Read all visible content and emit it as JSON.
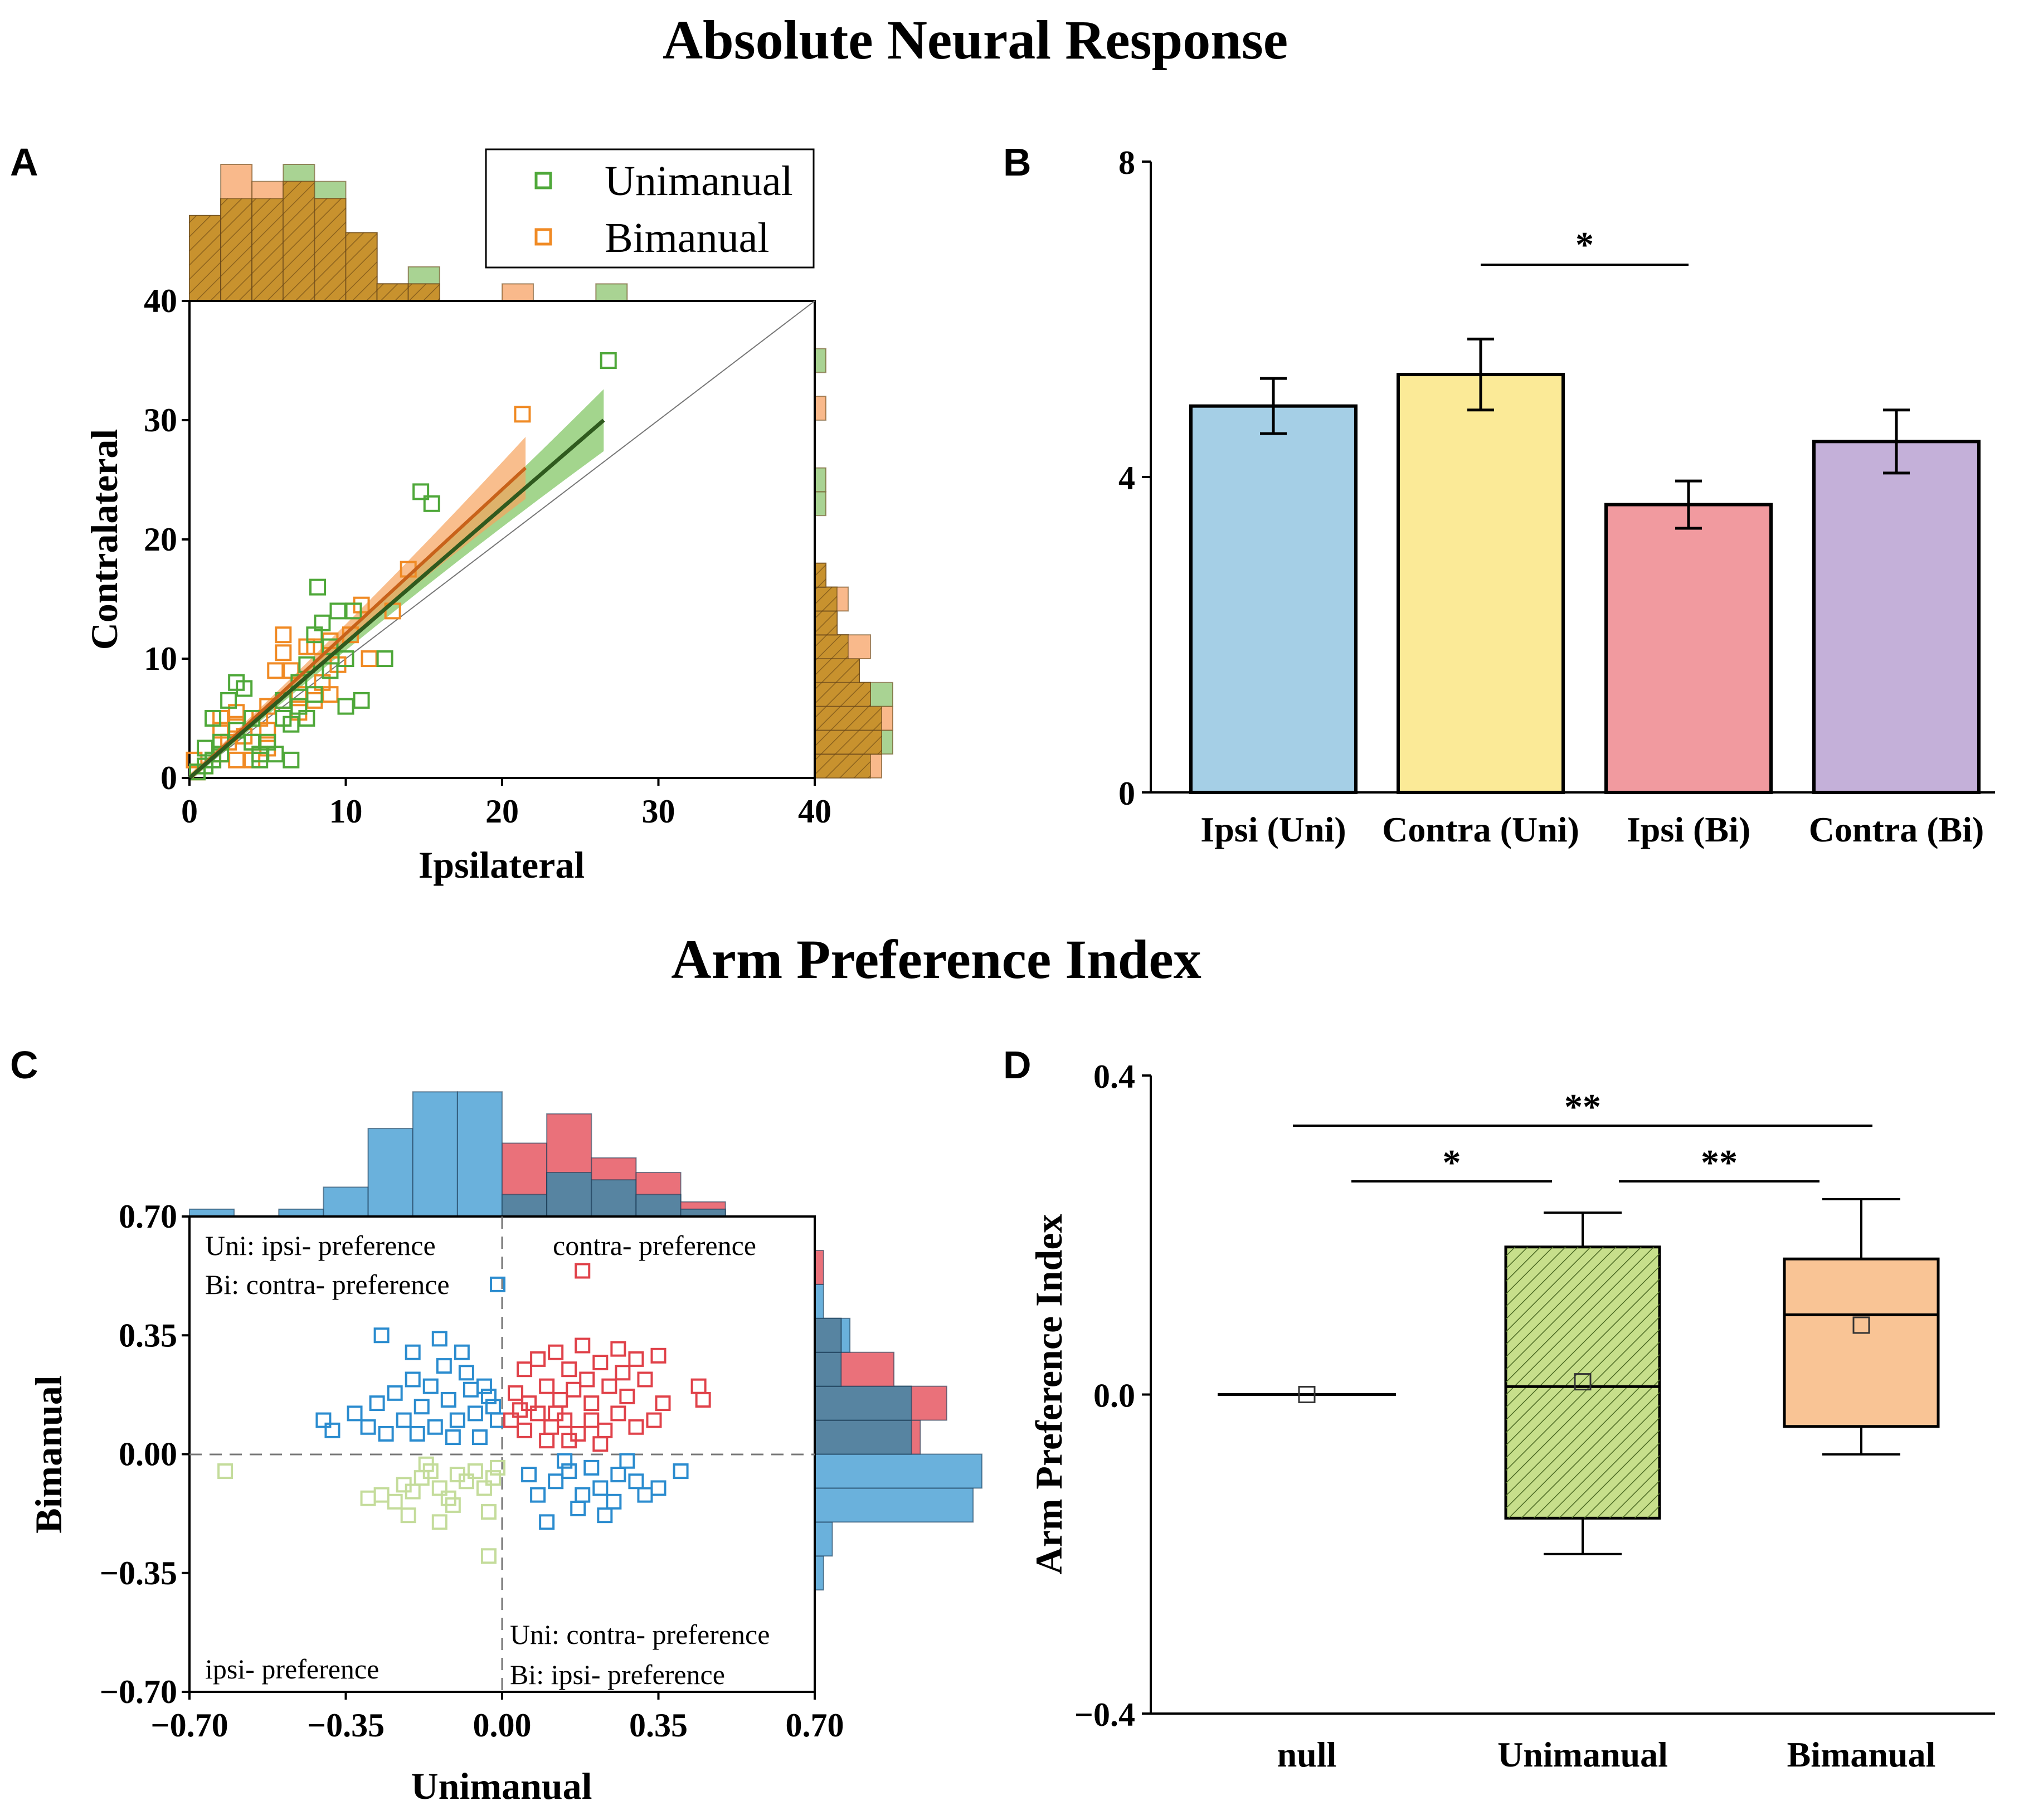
{
  "titles": {
    "top": "Absolute Neural Response",
    "bottom": "Arm Preference Index"
  },
  "panel_labels": {
    "a": "A",
    "b": "B",
    "c": "C",
    "d": "D"
  },
  "colors": {
    "uni_green": "#4fa83a",
    "bi_orange": "#f08a24",
    "uni_fit": "#2f5a1e",
    "uni_band": "#7cc35c",
    "bi_band": "#f7a35c",
    "hist_uni": "#a9d393",
    "hist_bi": "#f9b98b",
    "hist_overlap": "#c8922e",
    "bar_ipsi_uni": "#a5cfe6",
    "bar_contra_uni": "#fbea97",
    "bar_ipsi_bi": "#f19a9f",
    "bar_contra_bi": "#c4b0d9",
    "c_blue": "#2b8ccf",
    "c_red": "#e0424a",
    "c_lightgreen": "#c4dc9b",
    "hist_blue": "#5aa8d8",
    "hist_red": "#e8626b",
    "hist_overlap_c": "#3f8aa8",
    "box_uni": "#c7df8b",
    "box_bi": "#f9c495"
  },
  "chart_data": [
    {
      "id": "A",
      "type": "scatter",
      "xlabel": "Ipsilateral",
      "ylabel": "Contralateral",
      "xlim": [
        0,
        40
      ],
      "ylim": [
        0,
        40
      ],
      "xticks": [
        "0",
        "10",
        "20",
        "30",
        "40"
      ],
      "yticks": [
        "0",
        "10",
        "20",
        "30",
        "40"
      ],
      "legend": [
        "Unimanual",
        "Bimanual"
      ],
      "legend_position": "top-right",
      "identity_line": true,
      "series": [
        {
          "name": "Unimanual",
          "fit": {
            "x": [
              0,
              26.5
            ],
            "y": [
              0,
              30
            ]
          },
          "points": [
            [
              26.8,
              35
            ],
            [
              14.8,
              24
            ],
            [
              15.5,
              23
            ],
            [
              8.2,
              16
            ],
            [
              8.5,
              13
            ],
            [
              9.5,
              14
            ],
            [
              10.5,
              14
            ],
            [
              12.5,
              10
            ],
            [
              11,
              6.5
            ],
            [
              10,
              6
            ],
            [
              9,
              9
            ],
            [
              7.5,
              9.5
            ],
            [
              7,
              8
            ],
            [
              8,
              7
            ],
            [
              6,
              5
            ],
            [
              6.5,
              4.5
            ],
            [
              7.5,
              5
            ],
            [
              6.5,
              1.5
            ],
            [
              5,
              3
            ],
            [
              4.5,
              2
            ],
            [
              4,
              3
            ],
            [
              3,
              8
            ],
            [
              3.5,
              7.5
            ],
            [
              2.5,
              6.5
            ],
            [
              1.5,
              5
            ],
            [
              2,
              3
            ],
            [
              1.5,
              1.5
            ],
            [
              1,
              1
            ],
            [
              0.5,
              0.5
            ],
            [
              4.5,
              1.5
            ],
            [
              5.5,
              2
            ],
            [
              6,
              6.5
            ],
            [
              8,
              12
            ],
            [
              9,
              11
            ],
            [
              3,
              4
            ],
            [
              2,
              2
            ],
            [
              1,
              2.5
            ],
            [
              4,
              5
            ],
            [
              10,
              10
            ],
            [
              7,
              6
            ]
          ]
        },
        {
          "name": "Bimanual",
          "fit": {
            "x": [
              0,
              21.5
            ],
            "y": [
              0,
              26
            ]
          },
          "points": [
            [
              21.3,
              30.5
            ],
            [
              14,
              17.5
            ],
            [
              11,
              14.5
            ],
            [
              10.5,
              14
            ],
            [
              10.3,
              12
            ],
            [
              9,
              11.5
            ],
            [
              8,
              11
            ],
            [
              7.5,
              11
            ],
            [
              6,
              12
            ],
            [
              6,
              10.5
            ],
            [
              5.5,
              9
            ],
            [
              6.5,
              9
            ],
            [
              8.5,
              8
            ],
            [
              11.5,
              10
            ],
            [
              9,
              7
            ],
            [
              8,
              6.5
            ],
            [
              7,
              7
            ],
            [
              6,
              6.5
            ],
            [
              5,
              6
            ],
            [
              5,
              4
            ],
            [
              4.5,
              5
            ],
            [
              4,
              3
            ],
            [
              3.5,
              3.5
            ],
            [
              3,
              4.5
            ],
            [
              2.5,
              3
            ],
            [
              2,
              4
            ],
            [
              2,
              2
            ],
            [
              1.5,
              1.5
            ],
            [
              1,
              1
            ],
            [
              0.5,
              0.5
            ],
            [
              1,
              2.5
            ],
            [
              3,
              1.5
            ],
            [
              4,
              1.5
            ],
            [
              7,
              5.5
            ],
            [
              3,
              5.5
            ],
            [
              2,
              5
            ],
            [
              5,
              2.5
            ],
            [
              9.5,
              9.5
            ],
            [
              13,
              14
            ],
            [
              0.3,
              1.5
            ]
          ]
        }
      ]
    },
    {
      "id": "B",
      "type": "bar",
      "categories": [
        "Ipsi (Uni)",
        "Contra (Uni)",
        "Ipsi (Bi)",
        "Contra (Bi)"
      ],
      "values": [
        4.9,
        5.3,
        3.65,
        4.45
      ],
      "errors": [
        0.35,
        0.45,
        0.3,
        0.4
      ],
      "ylim": [
        0,
        8
      ],
      "yticks": [
        "0",
        "4",
        "8"
      ],
      "significance": [
        {
          "from": 1,
          "to": 2,
          "label": "*"
        }
      ]
    },
    {
      "id": "C",
      "type": "scatter",
      "xlabel": "Unimanual",
      "ylabel": "Bimanual",
      "xlim": [
        -0.7,
        0.7
      ],
      "ylim": [
        -0.7,
        0.7
      ],
      "xticks": [
        "−0.70",
        "−0.35",
        "0.00",
        "0.35",
        "0.70"
      ],
      "yticks": [
        "−0.70",
        "−0.35",
        "0.00",
        "0.35",
        "0.70"
      ],
      "annotations": {
        "top_left_1": "Uni: ipsi- preference",
        "top_left_2": "Bi: contra- preference",
        "top_right": "contra- preference",
        "bottom_left": "ipsi- preference",
        "bottom_right_1": "Uni: contra- preference",
        "bottom_right_2": "Bi: ipsi- preference"
      },
      "groups": [
        {
          "name": "Uni ipsi / Bi contra",
          "color": "blue",
          "points": [
            [
              -0.01,
              0.5
            ],
            [
              -0.4,
              0.1
            ],
            [
              -0.38,
              0.07
            ],
            [
              -0.33,
              0.12
            ],
            [
              -0.3,
              0.08
            ],
            [
              -0.28,
              0.15
            ],
            [
              -0.26,
              0.06
            ],
            [
              -0.24,
              0.18
            ],
            [
              -0.22,
              0.1
            ],
            [
              -0.2,
              0.22
            ],
            [
              -0.18,
              0.14
            ],
            [
              -0.16,
              0.2
            ],
            [
              -0.15,
              0.08
            ],
            [
              -0.13,
              0.26
            ],
            [
              -0.12,
              0.16
            ],
            [
              -0.1,
              0.1
            ],
            [
              -0.09,
              0.3
            ],
            [
              -0.07,
              0.19
            ],
            [
              -0.06,
              0.12
            ],
            [
              -0.05,
              0.05
            ],
            [
              -0.03,
              0.17
            ],
            [
              -0.02,
              0.14
            ],
            [
              -0.01,
              0.1
            ],
            [
              -0.2,
              0.3
            ],
            [
              -0.14,
              0.34
            ],
            [
              -0.04,
              0.2
            ],
            [
              -0.11,
              0.05
            ],
            [
              -0.19,
              0.06
            ],
            [
              -0.08,
              0.24
            ],
            [
              -0.27,
              0.35
            ]
          ]
        },
        {
          "name": "Uni contra / Bi ipsi",
          "color": "blue",
          "points": [
            [
              0.15,
              -0.05
            ],
            [
              0.12,
              -0.08
            ],
            [
              0.18,
              -0.12
            ],
            [
              0.2,
              -0.04
            ],
            [
              0.22,
              -0.1
            ],
            [
              0.25,
              -0.14
            ],
            [
              0.3,
              -0.08
            ],
            [
              0.32,
              -0.12
            ],
            [
              0.35,
              -0.1
            ],
            [
              0.28,
              -0.02
            ],
            [
              0.1,
              -0.2
            ],
            [
              0.17,
              -0.16
            ],
            [
              0.23,
              -0.18
            ],
            [
              0.08,
              -0.12
            ],
            [
              0.4,
              -0.05
            ],
            [
              0.06,
              -0.06
            ],
            [
              0.14,
              -0.02
            ],
            [
              0.26,
              -0.06
            ]
          ]
        },
        {
          "name": "contra preference",
          "color": "red",
          "points": [
            [
              0.18,
              0.54
            ],
            [
              0.05,
              0.25
            ],
            [
              0.08,
              0.28
            ],
            [
              0.12,
              0.3
            ],
            [
              0.15,
              0.25
            ],
            [
              0.18,
              0.32
            ],
            [
              0.22,
              0.27
            ],
            [
              0.26,
              0.31
            ],
            [
              0.3,
              0.28
            ],
            [
              0.35,
              0.29
            ],
            [
              0.03,
              0.18
            ],
            [
              0.06,
              0.15
            ],
            [
              0.1,
              0.2
            ],
            [
              0.13,
              0.16
            ],
            [
              0.16,
              0.19
            ],
            [
              0.2,
              0.15
            ],
            [
              0.24,
              0.2
            ],
            [
              0.28,
              0.17
            ],
            [
              0.32,
              0.22
            ],
            [
              0.36,
              0.15
            ],
            [
              0.44,
              0.2
            ],
            [
              0.45,
              0.16
            ],
            [
              0.02,
              0.1
            ],
            [
              0.05,
              0.07
            ],
            [
              0.08,
              0.12
            ],
            [
              0.11,
              0.08
            ],
            [
              0.14,
              0.1
            ],
            [
              0.17,
              0.06
            ],
            [
              0.2,
              0.1
            ],
            [
              0.23,
              0.07
            ],
            [
              0.26,
              0.12
            ],
            [
              0.3,
              0.08
            ],
            [
              0.34,
              0.1
            ],
            [
              0.15,
              0.04
            ],
            [
              0.22,
              0.03
            ],
            [
              0.1,
              0.04
            ],
            [
              0.04,
              0.13
            ],
            [
              0.27,
              0.24
            ],
            [
              0.19,
              0.22
            ],
            [
              0.12,
              0.12
            ]
          ]
        },
        {
          "name": "ipsi preference",
          "color": "lightgreen",
          "points": [
            [
              -0.62,
              -0.05
            ],
            [
              -0.3,
              -0.13
            ],
            [
              -0.27,
              -0.12
            ],
            [
              -0.24,
              -0.14
            ],
            [
              -0.22,
              -0.09
            ],
            [
              -0.2,
              -0.11
            ],
            [
              -0.18,
              -0.07
            ],
            [
              -0.16,
              -0.05
            ],
            [
              -0.14,
              -0.1
            ],
            [
              -0.12,
              -0.13
            ],
            [
              -0.1,
              -0.06
            ],
            [
              -0.08,
              -0.08
            ],
            [
              -0.06,
              -0.05
            ],
            [
              -0.04,
              -0.1
            ],
            [
              -0.02,
              -0.07
            ],
            [
              -0.01,
              -0.04
            ],
            [
              -0.14,
              -0.2
            ],
            [
              -0.21,
              -0.18
            ],
            [
              -0.03,
              -0.17
            ],
            [
              -0.03,
              -0.3
            ],
            [
              -0.11,
              -0.15
            ],
            [
              -0.17,
              -0.03
            ]
          ]
        }
      ]
    },
    {
      "id": "D",
      "type": "box",
      "ylabel": "Arm Preference Index",
      "categories": [
        "null",
        "Unimanual",
        "Bimanual"
      ],
      "ylim": [
        -0.4,
        0.4
      ],
      "yticks": [
        "−0.4",
        "0.0",
        "0.4"
      ],
      "boxes": [
        {
          "name": "null",
          "whisker_low": 0,
          "q1": 0,
          "median": 0,
          "q3": 0,
          "whisker_high": 0,
          "mean": 0
        },
        {
          "name": "Unimanual",
          "whisker_low": -0.2,
          "q1": -0.155,
          "median": 0.01,
          "q3": 0.185,
          "whisker_high": 0.228,
          "mean": 0.016
        },
        {
          "name": "Bimanual",
          "whisker_low": -0.075,
          "q1": -0.04,
          "median": 0.1,
          "q3": 0.17,
          "whisker_high": 0.245,
          "mean": 0.087
        }
      ],
      "significance": [
        {
          "from": 0,
          "to": 2,
          "label": "**"
        },
        {
          "from": 0,
          "to": 1,
          "label": "*"
        },
        {
          "from": 1,
          "to": 2,
          "label": "**"
        }
      ]
    }
  ]
}
